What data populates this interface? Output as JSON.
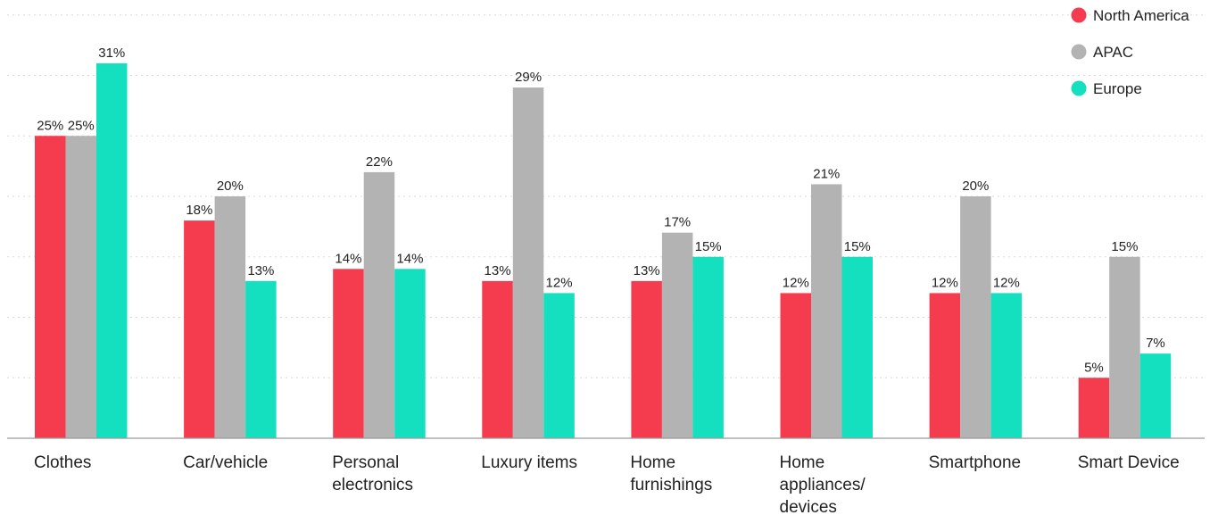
{
  "chart_data": {
    "type": "bar",
    "categories": [
      [
        "Clothes"
      ],
      [
        "Car/vehicle"
      ],
      [
        "Personal",
        "electronics"
      ],
      [
        "Luxury items"
      ],
      [
        "Home",
        "furnishings"
      ],
      [
        "Home",
        "appliances/",
        "devices"
      ],
      [
        "Smartphone"
      ],
      [
        "Smart Device"
      ]
    ],
    "series": [
      {
        "name": "North America",
        "color": "#f53c4f",
        "values": [
          25,
          18,
          14,
          13,
          13,
          12,
          12,
          5
        ],
        "labels": [
          "25%",
          "18%",
          "14%",
          "13%",
          "13%",
          "12%",
          "12%",
          "5%"
        ]
      },
      {
        "name": "APAC",
        "color": "#b3b3b3",
        "values": [
          25,
          20,
          22,
          29,
          17,
          21,
          20,
          15
        ],
        "labels": [
          "25%",
          "20%",
          "22%",
          "29%",
          "17%",
          "21%",
          "20%",
          "15%"
        ]
      },
      {
        "name": "Europe",
        "color": "#14e0bf",
        "values": [
          31,
          13,
          14,
          12,
          15,
          15,
          12,
          7
        ],
        "labels": [
          "31%",
          "13%",
          "14%",
          "12%",
          "15%",
          "15%",
          "12%",
          "7%"
        ]
      }
    ],
    "title": "",
    "xlabel": "",
    "ylabel": "",
    "ylim": [
      0,
      35
    ],
    "grid": true,
    "legend_position": "top-right"
  }
}
